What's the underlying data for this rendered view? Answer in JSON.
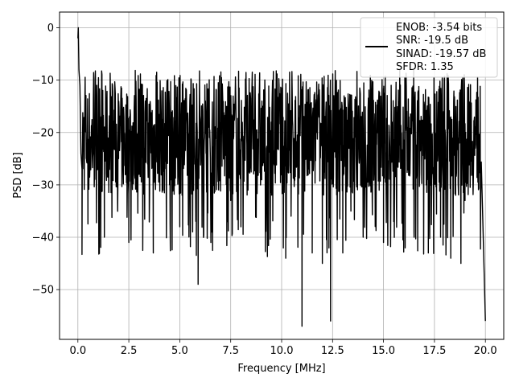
{
  "chart_data": {
    "type": "line",
    "xlabel": "Frequency [MHz]",
    "ylabel": "PSD [dB]",
    "xlim": [
      -0.9,
      20.9
    ],
    "ylim": [
      -59.5,
      3
    ],
    "xticks": [
      0.0,
      2.5,
      5.0,
      7.5,
      10.0,
      12.5,
      15.0,
      17.5,
      20.0
    ],
    "xtick_labels": [
      "0.0",
      "2.5",
      "5.0",
      "7.5",
      "10.0",
      "12.5",
      "15.0",
      "17.5",
      "20.0"
    ],
    "yticks": [
      0,
      -10,
      -20,
      -30,
      -40,
      -50
    ],
    "ytick_labels": [
      "0",
      "−10",
      "−20",
      "−30",
      "−40",
      "−50"
    ],
    "grid": true,
    "legend_position": "top-right",
    "legend_lines": [
      "ENOB: -3.54 bits",
      "SNR: -19.5 dB",
      "SINAD: -19.57 dB",
      "SFDR: 1.35"
    ],
    "series": [
      {
        "color": "#000000",
        "x": [
          0.0,
          0.02,
          0.05,
          0.1,
          0.15,
          0.2,
          0.3,
          0.5,
          0.8,
          1.3,
          2.0,
          2.5,
          3.0,
          3.5,
          3.7,
          4.5,
          5.0,
          5.9,
          7.0,
          7.5,
          8.0,
          9.0,
          10.2,
          11.0,
          11.5,
          12.0,
          12.4,
          13.0,
          13.4,
          14.0,
          15.0,
          15.5,
          16.5,
          17.2,
          17.8,
          18.3,
          18.8,
          19.0,
          19.9,
          20.0
        ],
        "y": [
          -2,
          0,
          -8,
          -11,
          -24,
          -27,
          -18,
          -22,
          -25,
          -40,
          -25,
          -41,
          -28,
          -23,
          -43,
          -30,
          -38,
          -49,
          -30,
          -33,
          -38,
          -28,
          -44,
          -57,
          -43,
          -45,
          -56,
          -43,
          -35,
          -40,
          -41,
          -37,
          -40,
          -43,
          -40,
          -44,
          -45,
          -33,
          -41,
          -56
        ]
      }
    ],
    "noise_envelope": {
      "upper_db": -11,
      "lower_db": -32,
      "seed": 7
    }
  }
}
